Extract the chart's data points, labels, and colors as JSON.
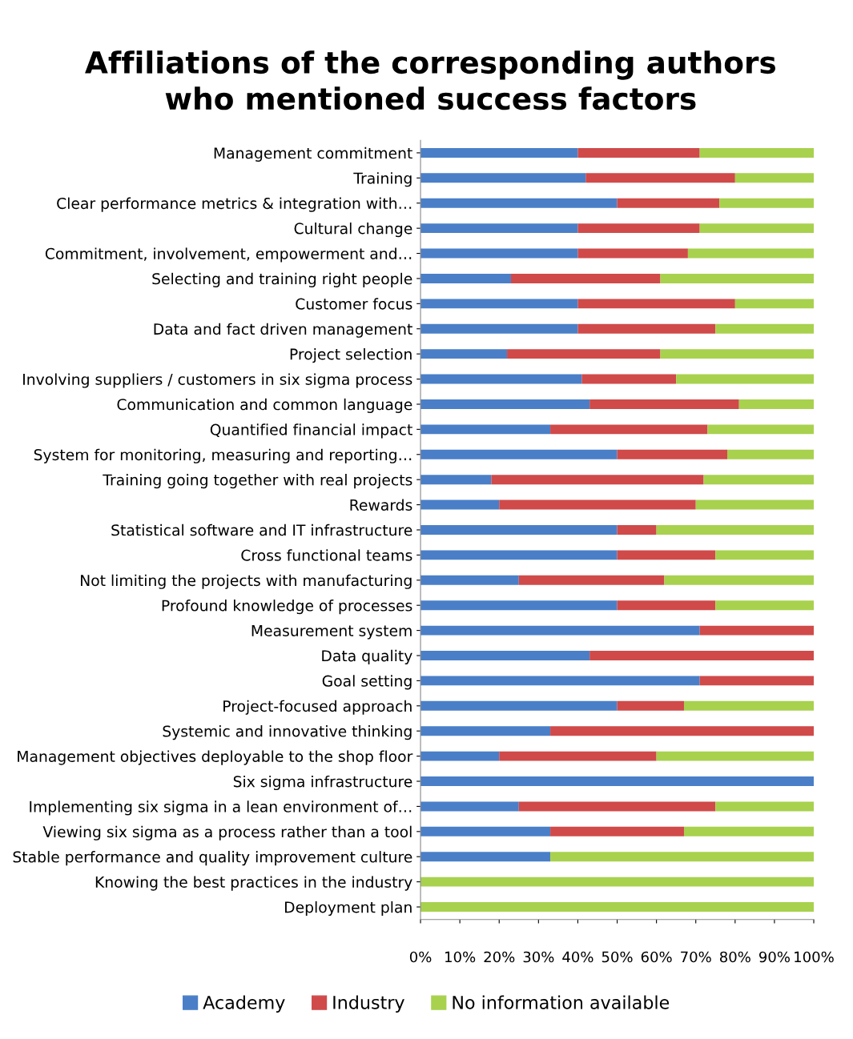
{
  "chart_data": {
    "type": "bar",
    "orientation": "horizontal",
    "stacked": true,
    "title": "Affiliations of the corresponding authors\nwho mentioned success factors",
    "categories": [
      "Management commitment",
      "Training",
      "Clear performance metrics & integration with…",
      "Cultural change",
      "Commitment, involvement, empowerment and…",
      "Selecting and training right people",
      "Customer focus",
      "Data and fact driven management",
      "Project selection",
      "Involving suppliers / customers in six sigma process",
      "Communication and common language",
      "Quantified financial impact",
      "System for monitoring, measuring and reporting…",
      "Training going together with real projects",
      "Rewards",
      "Statistical software and IT infrastructure",
      "Cross functional teams",
      "Not limiting the projects with manufacturing",
      "Profound knowledge of processes",
      "Measurement system",
      "Data quality",
      "Goal setting",
      "Project-focused approach",
      "Systemic and innovative thinking",
      "Management objectives deployable to the shop floor",
      "Six sigma infrastructure",
      "Implementing six sigma in a lean environment of…",
      "Viewing six sigma as a process rather than a tool",
      "Stable performance and quality improvement culture",
      "Knowing the best practices in the industry",
      "Deployment plan"
    ],
    "series": [
      {
        "name": "Academy",
        "color": "#4a7fc8",
        "values": [
          40,
          42,
          50,
          40,
          40,
          23,
          40,
          40,
          22,
          41,
          43,
          33,
          50,
          18,
          20,
          50,
          50,
          25,
          50,
          71,
          43,
          71,
          50,
          33,
          20,
          100,
          25,
          33,
          33,
          0,
          0
        ]
      },
      {
        "name": "Industry",
        "color": "#d04a4a",
        "values": [
          31,
          38,
          26,
          31,
          28,
          38,
          40,
          35,
          39,
          24,
          38,
          40,
          28,
          54,
          50,
          10,
          25,
          37,
          25,
          29,
          57,
          29,
          17,
          67,
          40,
          0,
          50,
          34,
          0,
          0,
          0
        ]
      },
      {
        "name": "No information available",
        "color": "#a8d14e",
        "values": [
          29,
          20,
          24,
          29,
          32,
          39,
          20,
          25,
          39,
          35,
          19,
          27,
          22,
          28,
          30,
          40,
          25,
          38,
          25,
          0,
          0,
          0,
          33,
          0,
          40,
          0,
          25,
          33,
          67,
          100,
          100
        ]
      }
    ],
    "xlim": [
      0,
      100
    ],
    "xticks": [
      {
        "value": 0,
        "label": "0%"
      },
      {
        "value": 10,
        "label": "10%"
      },
      {
        "value": 20,
        "label": "20%"
      },
      {
        "value": 30,
        "label": "30%"
      },
      {
        "value": 40,
        "label": "40%"
      },
      {
        "value": 50,
        "label": "50%"
      },
      {
        "value": 60,
        "label": "60%"
      },
      {
        "value": 70,
        "label": "70%"
      },
      {
        "value": 80,
        "label": "80%"
      },
      {
        "value": 90,
        "label": "90%"
      },
      {
        "value": 100,
        "label": "100%"
      }
    ],
    "grid": false,
    "legend": "bottom"
  }
}
